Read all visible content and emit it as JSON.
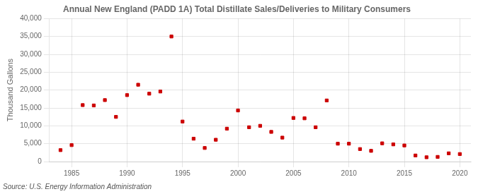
{
  "chart_data": {
    "type": "scatter",
    "title": "Annual New England (PADD 1A) Total Distillate Sales/Deliveries to Military Consumers",
    "ylabel": "Thousand Gallons",
    "annotations": [
      "Source: U.S. Energy Information Administration"
    ],
    "x": [
      1984,
      1985,
      1986,
      1987,
      1988,
      1989,
      1990,
      1991,
      1992,
      1993,
      1994,
      1995,
      1996,
      1997,
      1998,
      1999,
      2000,
      2001,
      2002,
      2003,
      2004,
      2005,
      2006,
      2007,
      2008,
      2009,
      2010,
      2011,
      2012,
      2013,
      2014,
      2015,
      2016,
      2017,
      2018,
      2019,
      2020
    ],
    "values": [
      3200,
      4600,
      15800,
      15700,
      17200,
      12500,
      18600,
      21500,
      19000,
      19600,
      35000,
      11200,
      6400,
      3800,
      6100,
      9200,
      14300,
      9600,
      10000,
      8300,
      6700,
      12200,
      12100,
      9600,
      17100,
      5000,
      5000,
      3500,
      3000,
      5100,
      4800,
      4500,
      1700,
      1200,
      1300,
      2300,
      2100
    ],
    "color": "#cc0000",
    "marker": "square",
    "xlim": [
      1983,
      2021
    ],
    "xticks": [
      1985,
      1990,
      1995,
      2000,
      2005,
      2010,
      2015,
      2020
    ],
    "ylim": [
      0,
      40000
    ],
    "yticks": [
      0,
      {
        "value": 5000,
        "label": "5,000"
      },
      {
        "value": 10000,
        "label": "10,000"
      },
      {
        "value": 15000,
        "label": "15,000"
      },
      {
        "value": 20000,
        "label": "20,000"
      },
      {
        "value": 25000,
        "label": "25,000"
      },
      {
        "value": 30000,
        "label": "30,000"
      },
      {
        "value": 35000,
        "label": "35,000"
      },
      {
        "value": 40000,
        "label": "40,000"
      }
    ],
    "grid": true
  }
}
